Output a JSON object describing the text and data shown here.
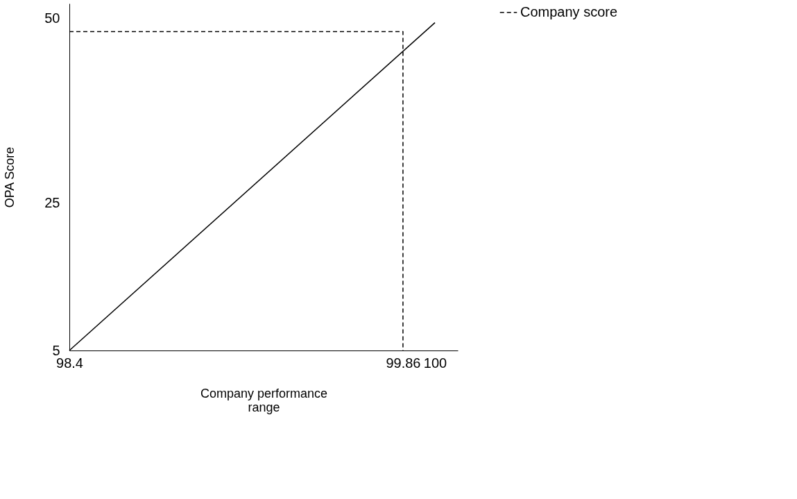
{
  "chart_data": {
    "type": "line",
    "xlabel": "Company performance range",
    "ylabel": "OPA Score",
    "xlim": [
      98.4,
      100.1
    ],
    "xticks": [
      98.4,
      99.86,
      100
    ],
    "ylim": [
      5,
      52
    ],
    "yticks": [
      5,
      25,
      50
    ],
    "grid": false,
    "legend": "right",
    "marker": "none",
    "series": [
      {
        "name": "Company score",
        "x": [
          98.4,
          99.86,
          99.86
        ],
        "values": [
          48.2,
          48.2,
          5
        ],
        "color": "#000000",
        "line_style": "dashed"
      },
      {
        "x": [
          98.4,
          100
        ],
        "values": [
          5,
          49.4
        ],
        "color": "#000000",
        "line_style": "solid"
      }
    ]
  }
}
